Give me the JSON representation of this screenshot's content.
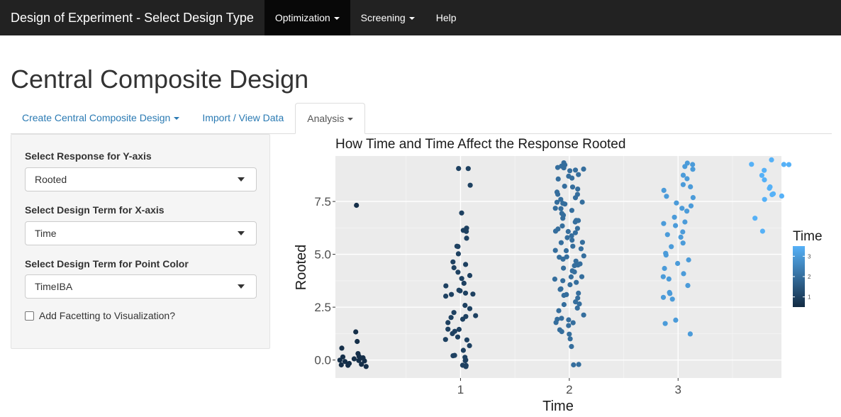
{
  "navbar": {
    "brand": "Design of Experiment - Select Design Type",
    "items": [
      {
        "label": "Optimization",
        "dropdown": true,
        "active": true
      },
      {
        "label": "Screening",
        "dropdown": true,
        "active": false
      },
      {
        "label": "Help",
        "dropdown": false,
        "active": false
      }
    ]
  },
  "page": {
    "title": "Central Composite Design"
  },
  "tabs": [
    {
      "label": "Create Central Composite Design",
      "dropdown": true,
      "active": false
    },
    {
      "label": "Import / View Data",
      "dropdown": false,
      "active": false
    },
    {
      "label": "Analysis",
      "dropdown": true,
      "active": true
    }
  ],
  "sidebar": {
    "y_label": "Select Response for Y-axis",
    "y_value": "Rooted",
    "x_label": "Select Design Term for X-axis",
    "x_value": "Time",
    "color_label": "Select Design Term for Point Color",
    "color_value": "TimeIBA",
    "facet_label": "Add Facetting to Visualization?",
    "facet_checked": false
  },
  "colors": {
    "navbar_bg": "#222222",
    "link": "#2a7ab3",
    "panel_bg": "#ebebeb",
    "color_low": "#132b43",
    "color_high": "#56b1f7"
  },
  "chart_data": {
    "type": "scatter",
    "title": "How Time and Time Affect the Response Rooted",
    "xlabel": "Time",
    "ylabel": "Rooted",
    "xlim": [
      -0.15,
      3.95
    ],
    "ylim": [
      -0.85,
      9.65
    ],
    "x_ticks": [
      {
        "value": 1,
        "label": "1"
      },
      {
        "value": 2,
        "label": "2"
      },
      {
        "value": 3,
        "label": "3"
      }
    ],
    "y_ticks": [
      {
        "value": 0,
        "label": "0.0"
      },
      {
        "value": 2.5,
        "label": "2.5"
      },
      {
        "value": 5,
        "label": "5.0"
      },
      {
        "value": 7.5,
        "label": "7.5"
      }
    ],
    "legend": {
      "title": "Time",
      "ticks": [
        "1",
        "2",
        "3"
      ],
      "min": 0.5,
      "max": 3.5
    },
    "groups": [
      {
        "x": 0,
        "jitter": 0.14,
        "color_value": 0.6,
        "y": [
          7.35,
          1.25,
          0.85,
          0.5,
          0.25,
          0.2,
          0.15,
          0.1,
          0.1,
          0.05,
          0.0,
          0.0,
          -0.05,
          -0.1,
          -0.15,
          -0.15,
          -0.2,
          -0.25,
          -0.3
        ]
      },
      {
        "x": 1,
        "jitter": 0.14,
        "color_value": 1.0,
        "y": [
          9.1,
          9.0,
          8.3,
          6.9,
          6.3,
          6.2,
          6.1,
          5.8,
          5.4,
          5.3,
          5.1,
          4.7,
          4.6,
          4.4,
          4.2,
          4.0,
          3.8,
          3.6,
          3.5,
          3.3,
          3.2,
          3.2,
          3.1,
          3.1,
          3.0,
          2.6,
          2.4,
          2.2,
          2.1,
          2.0,
          2.0,
          1.9,
          1.7,
          1.5,
          1.4,
          1.3,
          1.2,
          1.1,
          1.0,
          0.9,
          0.6,
          0.4,
          0.3,
          0.2,
          0.1,
          0.0,
          -0.1,
          -0.2,
          -0.2,
          -0.3
        ]
      },
      {
        "x": 2,
        "jitter": 0.14,
        "color_value": 2.0,
        "y": [
          9.3,
          9.25,
          9.2,
          9.1,
          9.0,
          8.9,
          8.8,
          8.7,
          8.5,
          8.3,
          8.2,
          8.0,
          7.9,
          7.8,
          7.7,
          7.6,
          7.5,
          7.4,
          7.3,
          7.2,
          7.0,
          6.9,
          6.8,
          6.7,
          6.6,
          6.5,
          6.4,
          6.3,
          6.2,
          6.1,
          6.0,
          5.9,
          5.8,
          5.7,
          5.5,
          5.4,
          5.3,
          5.2,
          5.1,
          5.0,
          4.9,
          4.8,
          4.7,
          4.6,
          4.5,
          4.4,
          4.3,
          4.2,
          4.0,
          3.9,
          3.8,
          3.7,
          3.6,
          3.5,
          3.4,
          3.3,
          3.2,
          3.0,
          2.9,
          2.8,
          2.6,
          2.5,
          2.4,
          2.0,
          1.9,
          1.8,
          1.7,
          1.5,
          1.3,
          1.2,
          0.7,
          -0.2,
          -0.25,
          9.15,
          8.6,
          8.1,
          7.1,
          6.55,
          5.6,
          4.1,
          3.1,
          2.1,
          1.6,
          1.0,
          8.95,
          7.45,
          6.15,
          4.55,
          2.7,
          1.85
        ]
      },
      {
        "x": 3,
        "jitter": 0.14,
        "color_value": 3.0,
        "y": [
          9.3,
          9.2,
          9.1,
          9.0,
          8.8,
          8.6,
          8.3,
          8.2,
          8.0,
          7.8,
          7.7,
          7.5,
          7.3,
          7.1,
          7.0,
          6.8,
          6.6,
          6.4,
          6.3,
          6.1,
          6.0,
          5.8,
          5.6,
          5.4,
          5.1,
          5.0,
          4.8,
          4.5,
          4.3,
          4.1,
          4.0,
          3.8,
          3.5,
          3.2,
          3.1,
          3.0,
          2.9,
          1.9,
          1.8,
          1.3
        ]
      },
      {
        "x": 3.85,
        "jitter": 0.2,
        "color_value": 3.5,
        "y": [
          9.4,
          9.3,
          9.3,
          9.2,
          8.9,
          8.8,
          8.5,
          8.2,
          8.1,
          7.9,
          7.8,
          7.7,
          7.6,
          6.7,
          6.1
        ]
      }
    ]
  }
}
